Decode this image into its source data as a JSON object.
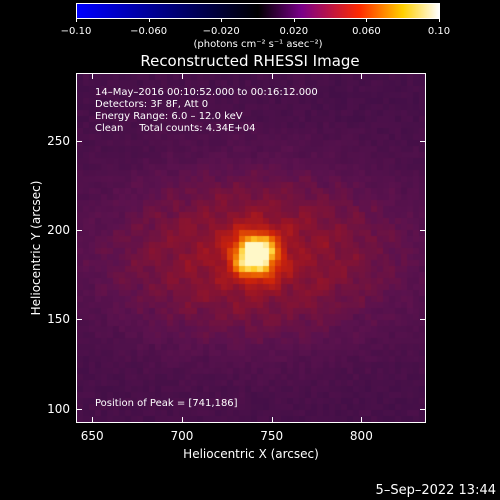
{
  "colorbar": {
    "tick_labels": [
      "−0.10",
      "−0.060",
      "−0.020",
      "0.020",
      "0.060",
      "0.10"
    ],
    "tick_values": [
      -0.1,
      -0.06,
      -0.02,
      0.02,
      0.06,
      0.1
    ],
    "range": [
      -0.1,
      0.1
    ],
    "units": "(photons cm⁻² s⁻¹ asec⁻²)",
    "colors": [
      "#0000ff",
      "#000000",
      "#7a0089",
      "#ff2a00",
      "#ffd000",
      "#ffffff"
    ]
  },
  "title": "Reconstructed RHESSI Image",
  "info": {
    "time_range": "14–May–2016 00:10:52.000 to 00:16:12.000",
    "detectors": "Detectors: 3F 8F, Att 0",
    "energy_range": "Energy Range: 6.0 – 12.0 keV",
    "method": "Clean     Total counts: 4.34E+04",
    "peak": "Position of Peak = [741,186]"
  },
  "axes": {
    "xlabel": "Heliocentric X (arcsec)",
    "ylabel": "Heliocentric Y (arcsec)",
    "x_range": [
      641,
      836
    ],
    "y_range": [
      92,
      288
    ],
    "x_ticks": [
      650,
      700,
      750,
      800
    ],
    "x_tick_labels": [
      "650",
      "700",
      "750",
      "800"
    ],
    "y_ticks": [
      100,
      150,
      200,
      250
    ],
    "y_tick_labels": [
      "100",
      "150",
      "200",
      "250"
    ]
  },
  "image_features": {
    "peak_position": [
      741,
      186
    ],
    "background_color": "#3a1458",
    "peak_color": "#fff6c0"
  },
  "footer": {
    "date": "5–Sep–2022 13:44"
  }
}
